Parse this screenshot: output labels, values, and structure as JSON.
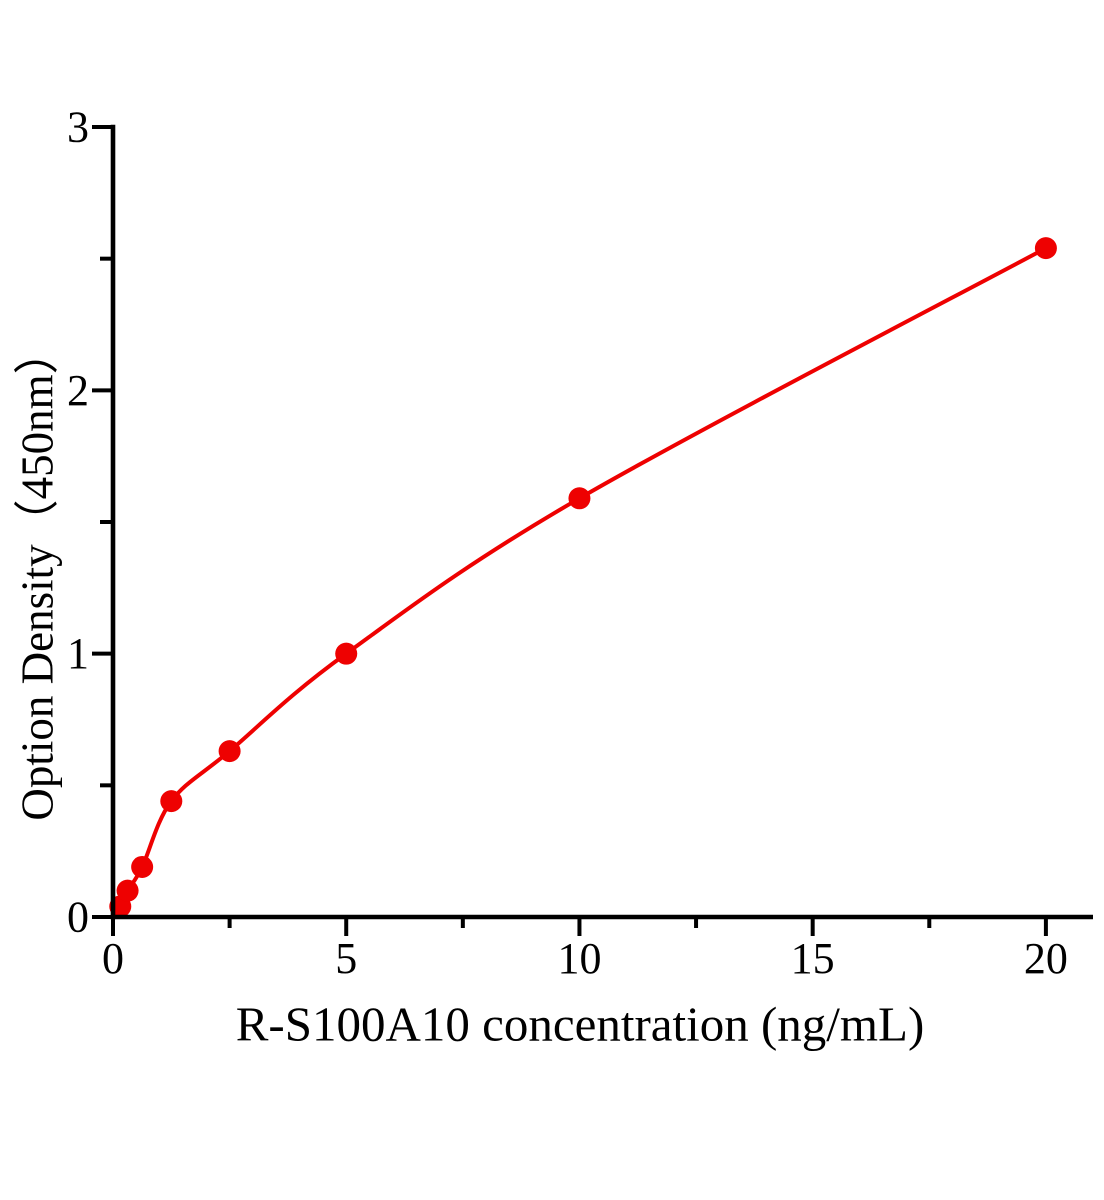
{
  "page": {
    "background": "#ffffff"
  },
  "chart_data": {
    "type": "scatter",
    "curve": "smooth-fitted-line-through-points",
    "xlabel": "R-S100A10 concentration (ng/mL)",
    "ylabel": "Option Density（450nm）",
    "grid": false,
    "legend": "none",
    "axis_color": "#000000",
    "series": [
      {
        "name": "standard-curve",
        "color": "#ee0101",
        "marker": "filled-circle",
        "x": [
          0.156,
          0.3125,
          0.625,
          1.25,
          2.5,
          5,
          10,
          20
        ],
        "y": [
          0.04,
          0.1,
          0.19,
          0.44,
          0.63,
          1.0,
          1.59,
          2.54
        ]
      }
    ],
    "x_axis": {
      "range": [
        0,
        21
      ],
      "major_ticks": [
        0,
        5,
        10,
        15,
        20
      ],
      "major_tick_labels": [
        "0",
        "5",
        "10",
        "15",
        "20"
      ],
      "minor_ticks": [
        2.5,
        7.5,
        12.5,
        17.5
      ]
    },
    "y_axis": {
      "range": [
        0,
        3
      ],
      "major_ticks": [
        0,
        1,
        2,
        3
      ],
      "major_tick_labels": [
        "0",
        "1",
        "2",
        "3"
      ],
      "minor_ticks": [
        0.5,
        1.5,
        2.5
      ]
    }
  }
}
